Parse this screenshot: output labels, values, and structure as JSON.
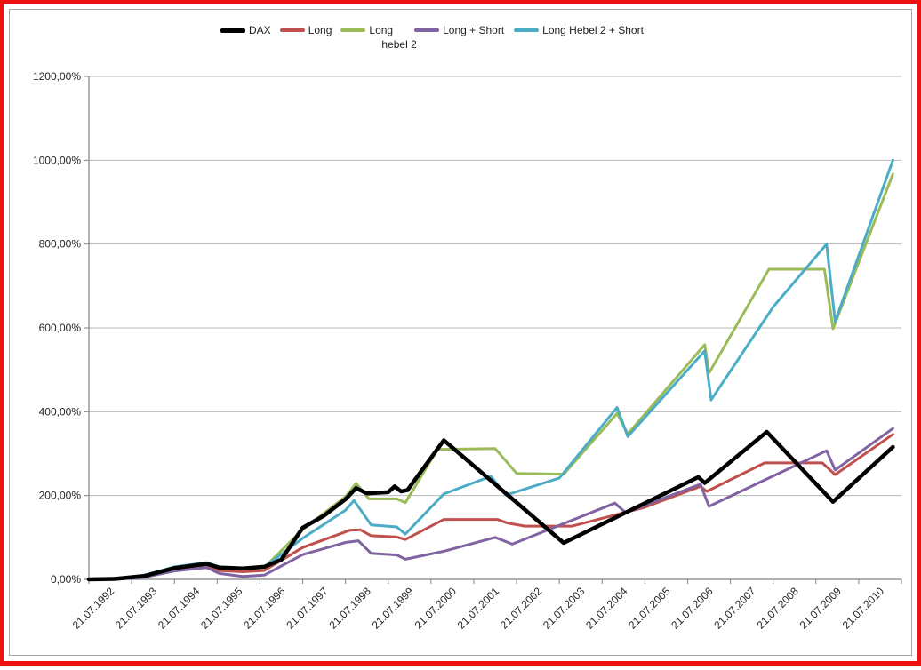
{
  "frame": {
    "outer_border_color": "#ee1111",
    "inner_border_color": "#a6a6a6",
    "background": "#ffffff"
  },
  "legend": {
    "position": "top",
    "items": [
      {
        "label": "DAX",
        "color": "#000000"
      },
      {
        "label": "Long",
        "color": "#C0504D"
      },
      {
        "label": "Long",
        "label2": "hebel 2",
        "color": "#9BBB59"
      },
      {
        "label": "Long + Short",
        "color": "#8064A2"
      },
      {
        "label": "Long Hebel 2 + Short",
        "color": "#4BACC6"
      }
    ]
  },
  "chart_data": {
    "type": "line",
    "title": "",
    "xlabel": "",
    "ylabel": "",
    "grid": "horizontal",
    "grid_color": "#b8b8b8",
    "axis_color": "#808080",
    "label_color": "#262626",
    "x_axis": {
      "labels": [
        "21.07.1992",
        "21.07.1993",
        "21.07.1994",
        "21.07.1995",
        "21.07.1996",
        "21.07.1997",
        "21.07.1998",
        "21.07.1999",
        "21.07.2000",
        "21.07.2001",
        "21.07.2002",
        "21.07.2003",
        "21.07.2004",
        "21.07.2005",
        "21.07.2006",
        "21.07.2007",
        "21.07.2008",
        "21.07.2009",
        "21.07.2010"
      ],
      "label_rotation_deg": -45,
      "start_year": 1992,
      "end_year_fraction": 2010.8
    },
    "y_axis": {
      "min": 0,
      "max": 1200,
      "step": 200,
      "unit": "%",
      "tick_labels_top_to_bottom": [
        "1200,00%",
        "1000,00%",
        "800,00%",
        "600,00%",
        "400,00%",
        "200,00%",
        "0,00%"
      ]
    },
    "series": [
      {
        "name": "DAX",
        "color": "#000000",
        "width": 4.5,
        "points": [
          [
            1992.0,
            0
          ],
          [
            1992.6,
            1
          ],
          [
            1993.3,
            8
          ],
          [
            1994.0,
            27
          ],
          [
            1994.75,
            37
          ],
          [
            1995.05,
            28
          ],
          [
            1995.6,
            26
          ],
          [
            1996.1,
            30
          ],
          [
            1996.5,
            47
          ],
          [
            1997.0,
            123
          ],
          [
            1997.5,
            152
          ],
          [
            1998.0,
            191
          ],
          [
            1998.25,
            218
          ],
          [
            1998.5,
            205
          ],
          [
            1999.0,
            208
          ],
          [
            1999.15,
            222
          ],
          [
            1999.3,
            210
          ],
          [
            1999.45,
            213
          ],
          [
            2000.3,
            332
          ],
          [
            2003.1,
            87
          ],
          [
            2006.25,
            244
          ],
          [
            2006.4,
            230
          ],
          [
            2007.85,
            352
          ],
          [
            2009.4,
            185
          ],
          [
            2010.8,
            316
          ]
        ]
      },
      {
        "name": "Long",
        "color": "#C0504D",
        "width": 3,
        "points": [
          [
            1992.0,
            0
          ],
          [
            1992.6,
            1
          ],
          [
            1993.3,
            6
          ],
          [
            1994.0,
            22
          ],
          [
            1994.75,
            32
          ],
          [
            1995.05,
            21
          ],
          [
            1995.6,
            18
          ],
          [
            1996.1,
            21
          ],
          [
            1997.0,
            76
          ],
          [
            1998.1,
            117
          ],
          [
            1998.35,
            118
          ],
          [
            1998.6,
            104
          ],
          [
            1999.2,
            101
          ],
          [
            1999.4,
            95
          ],
          [
            2000.3,
            143
          ],
          [
            2001.55,
            143
          ],
          [
            2001.8,
            134
          ],
          [
            2002.2,
            127
          ],
          [
            2003.3,
            127
          ],
          [
            2005.0,
            172
          ],
          [
            2006.3,
            222
          ],
          [
            2006.45,
            210
          ],
          [
            2007.8,
            278
          ],
          [
            2009.15,
            278
          ],
          [
            2009.45,
            250
          ],
          [
            2010.8,
            346
          ]
        ]
      },
      {
        "name": "Long hebel 2",
        "color": "#9BBB59",
        "width": 3,
        "points": [
          [
            1992.0,
            0
          ],
          [
            1992.6,
            1
          ],
          [
            1993.3,
            7
          ],
          [
            1994.0,
            26
          ],
          [
            1994.75,
            36
          ],
          [
            1995.05,
            26
          ],
          [
            1995.6,
            25
          ],
          [
            1996.1,
            28
          ],
          [
            1997.0,
            119
          ],
          [
            1998.0,
            197
          ],
          [
            1998.25,
            229
          ],
          [
            1998.55,
            192
          ],
          [
            1999.2,
            192
          ],
          [
            1999.4,
            183
          ],
          [
            2000.15,
            310
          ],
          [
            2001.5,
            312
          ],
          [
            2002.0,
            253
          ],
          [
            2003.1,
            251
          ],
          [
            2004.35,
            396
          ],
          [
            2004.6,
            347
          ],
          [
            2006.4,
            560
          ],
          [
            2006.5,
            492
          ],
          [
            2007.9,
            740
          ],
          [
            2009.2,
            740
          ],
          [
            2009.4,
            598
          ],
          [
            2010.8,
            967
          ]
        ]
      },
      {
        "name": "Long + Short",
        "color": "#8064A2",
        "width": 3,
        "points": [
          [
            1992.0,
            0
          ],
          [
            1992.6,
            0
          ],
          [
            1993.3,
            5
          ],
          [
            1994.0,
            20
          ],
          [
            1994.75,
            28
          ],
          [
            1995.05,
            14
          ],
          [
            1995.6,
            7
          ],
          [
            1996.1,
            10
          ],
          [
            1997.0,
            59
          ],
          [
            1998.0,
            88
          ],
          [
            1998.3,
            92
          ],
          [
            1998.6,
            62
          ],
          [
            1999.2,
            58
          ],
          [
            1999.4,
            48
          ],
          [
            2000.3,
            67
          ],
          [
            2001.5,
            100
          ],
          [
            2001.9,
            84
          ],
          [
            2004.3,
            182
          ],
          [
            2004.55,
            159
          ],
          [
            2006.3,
            227
          ],
          [
            2006.5,
            174
          ],
          [
            2009.25,
            307
          ],
          [
            2009.45,
            261
          ],
          [
            2010.8,
            360
          ]
        ]
      },
      {
        "name": "Long Hebel 2 + Short",
        "color": "#4BACC6",
        "width": 3,
        "points": [
          [
            1992.0,
            0
          ],
          [
            1992.6,
            2
          ],
          [
            1993.3,
            10
          ],
          [
            1994.0,
            30
          ],
          [
            1994.75,
            40
          ],
          [
            1995.05,
            30
          ],
          [
            1995.6,
            27
          ],
          [
            1996.1,
            29
          ],
          [
            1997.0,
            98
          ],
          [
            1998.0,
            165
          ],
          [
            1998.2,
            188
          ],
          [
            1998.6,
            130
          ],
          [
            1999.2,
            125
          ],
          [
            1999.4,
            108
          ],
          [
            2000.3,
            204
          ],
          [
            2001.4,
            246
          ],
          [
            2001.75,
            201
          ],
          [
            2003.0,
            242
          ],
          [
            2004.35,
            410
          ],
          [
            2004.6,
            341
          ],
          [
            2006.4,
            545
          ],
          [
            2006.55,
            428
          ],
          [
            2008.0,
            650
          ],
          [
            2009.25,
            800
          ],
          [
            2009.45,
            615
          ],
          [
            2010.8,
            1000
          ]
        ]
      }
    ],
    "draw_order": [
      1,
      2,
      3,
      4,
      0
    ]
  }
}
